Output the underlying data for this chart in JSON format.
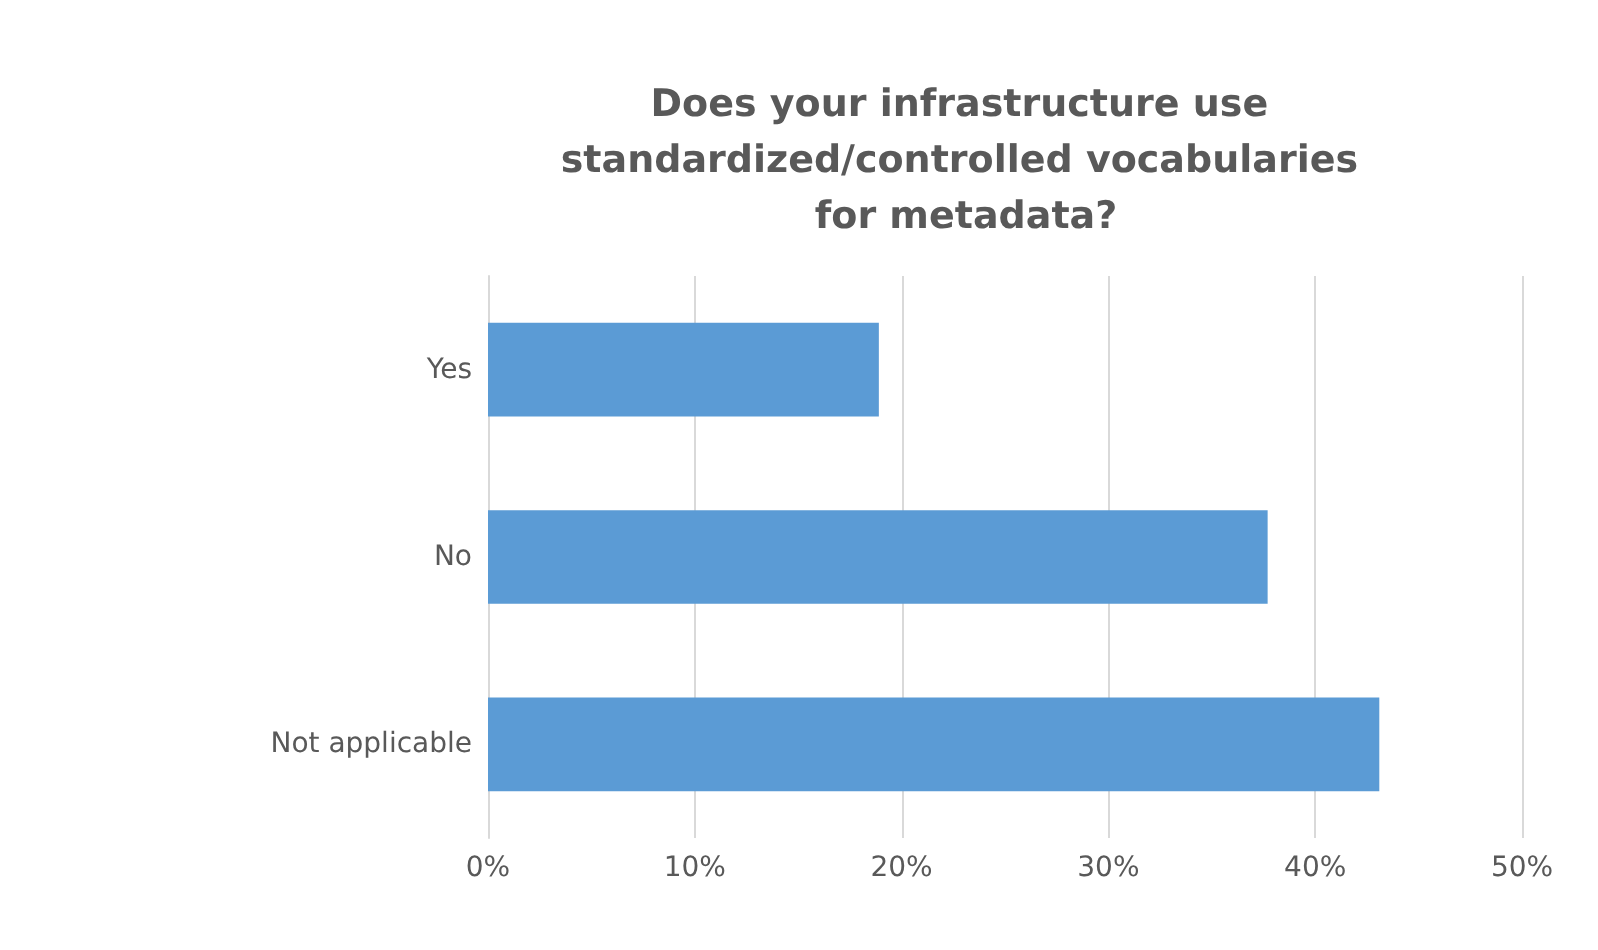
{
  "chart_data": {
    "type": "bar",
    "orientation": "horizontal",
    "title": "Does your infrastructure use standardized/controlled vocabularies for metadata?",
    "categories": [
      "Yes",
      "No",
      "Not applicable"
    ],
    "values": [
      18.9,
      37.7,
      43.1
    ],
    "color": "#5b9bd5",
    "xlim": [
      0,
      50
    ],
    "xticks": [
      {
        "value": 0,
        "label": "0%"
      },
      {
        "value": 10,
        "label": "10%"
      },
      {
        "value": 20,
        "label": "20%"
      },
      {
        "value": 30,
        "label": "30%"
      },
      {
        "value": 40,
        "label": "40%"
      },
      {
        "value": 50,
        "label": "50%"
      }
    ],
    "grid": "x"
  }
}
